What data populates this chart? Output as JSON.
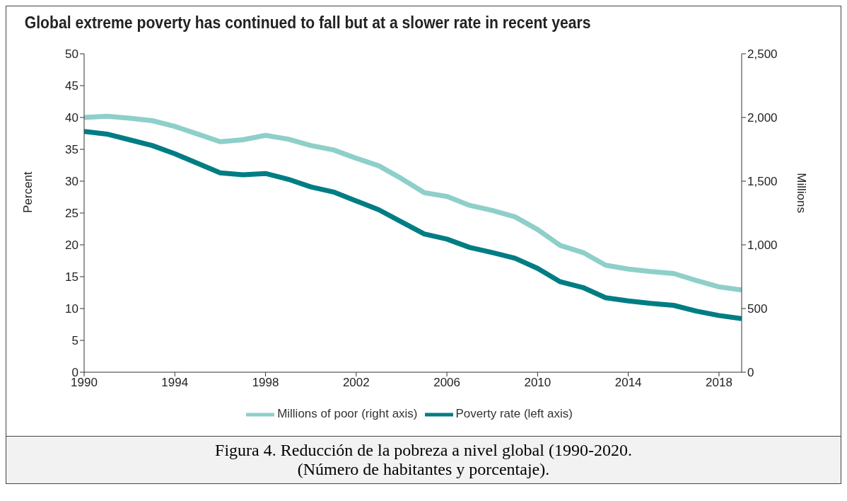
{
  "chart_data": {
    "type": "line",
    "title": "Global extreme poverty has continued to fall but at a slower rate in recent years",
    "x": [
      1990,
      1991,
      1992,
      1993,
      1994,
      1995,
      1996,
      1997,
      1998,
      1999,
      2000,
      2001,
      2002,
      2003,
      2004,
      2005,
      2006,
      2007,
      2008,
      2009,
      2010,
      2011,
      2012,
      2013,
      2014,
      2015,
      2016,
      2017,
      2018,
      2019
    ],
    "series": [
      {
        "name": "Poverty rate (left axis)",
        "color": "#007d84",
        "values": [
          37.8,
          37.4,
          36.5,
          35.6,
          34.3,
          32.8,
          31.3,
          31.0,
          31.2,
          30.3,
          29.1,
          28.3,
          26.9,
          25.5,
          23.6,
          21.7,
          20.9,
          19.6,
          18.8,
          17.9,
          16.3,
          14.2,
          13.3,
          11.7,
          11.2,
          10.8,
          10.5,
          9.6,
          8.9,
          8.4
        ]
      },
      {
        "name": "Millions of poor (right axis)",
        "color": "#8ecfc9",
        "axis": "y2",
        "values": [
          2000,
          2010,
          1995,
          1975,
          1930,
          1870,
          1810,
          1825,
          1860,
          1830,
          1780,
          1745,
          1680,
          1620,
          1520,
          1410,
          1380,
          1310,
          1270,
          1220,
          1120,
          995,
          940,
          840,
          810,
          790,
          775,
          720,
          670,
          645
        ]
      }
    ],
    "xlim": [
      1990,
      2019
    ],
    "xticks": [
      1990,
      1994,
      1998,
      2002,
      2006,
      2010,
      2014,
      2018
    ],
    "ylim": [
      0,
      50
    ],
    "yticks": [
      0,
      5,
      10,
      15,
      20,
      25,
      30,
      35,
      40,
      45,
      50
    ],
    "y2lim": [
      0,
      2500
    ],
    "y2ticks": [
      0,
      500,
      {
        "value": 1000,
        "label": "1,000"
      },
      {
        "value": 1500,
        "label": "1,500"
      },
      {
        "value": 2000,
        "label": "2,000"
      },
      {
        "value": 2500,
        "label": "2,500"
      }
    ],
    "ylabel": "Percent",
    "y2label": "Millions",
    "legend": "bottom",
    "marker": "none",
    "line_style": "solid",
    "annotations": [
      "Figura 4. Reducción de la pobreza a nivel global (1990-2020.",
      "(Número de habitantes y porcentaje)."
    ]
  }
}
